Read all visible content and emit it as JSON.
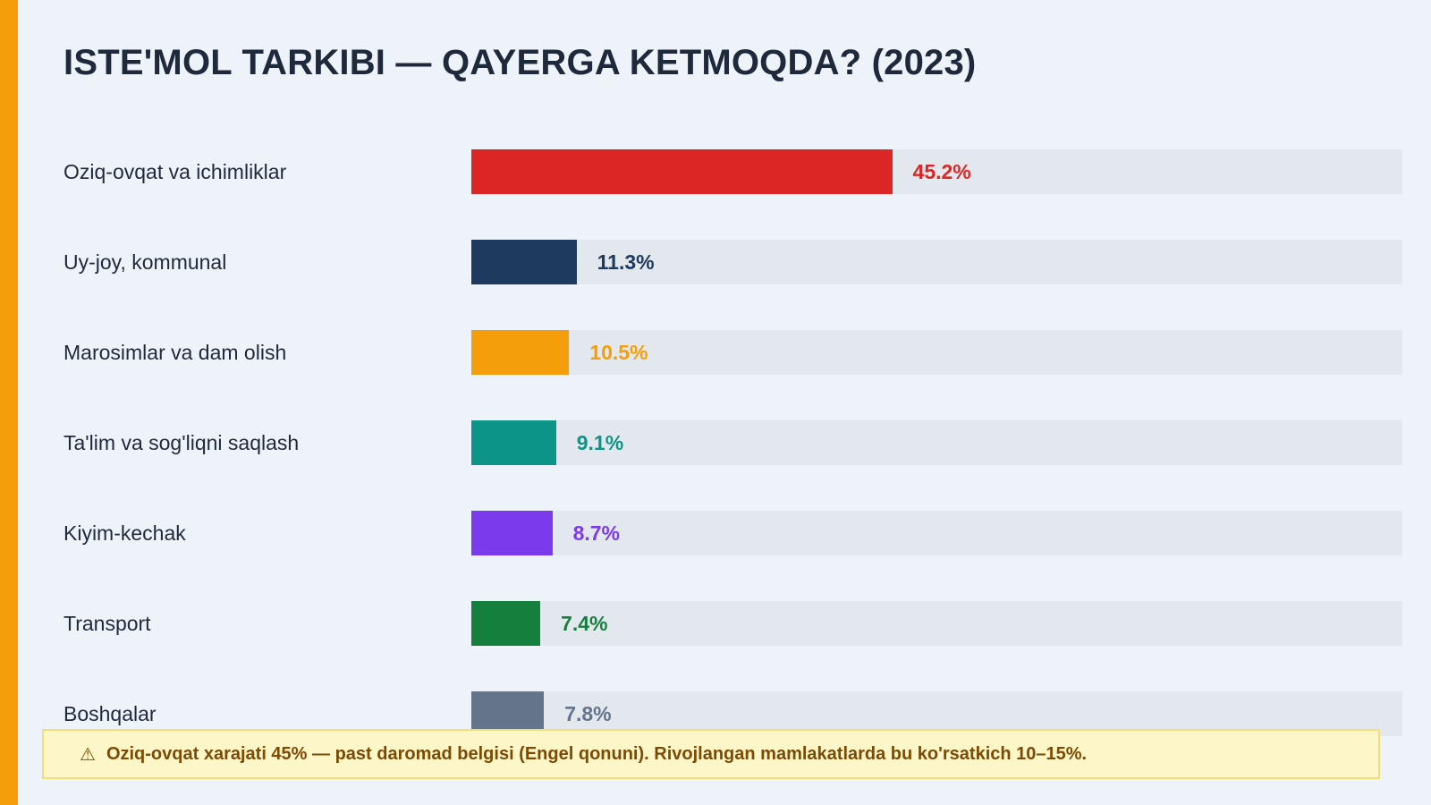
{
  "page": {
    "title": "ISTE'MOL TARKIBI — QAYERGA KETMOQDA? (2023)",
    "note": {
      "icon": "warning-icon",
      "glyph": "⚠",
      "text": "Oziq-ovqat xarajati 45% — past daromad belgisi (Engel qonuni). Rivojlangan mamlakatlarda bu ko'rsatkich 10–15%."
    },
    "colors": {
      "accent": "#f59e0b",
      "track": "#e3e8ef"
    }
  },
  "chart_data": {
    "type": "bar",
    "orientation": "horizontal",
    "title": "ISTE'MOL TARKIBI — QAYERGA KETMOQDA? (2023)",
    "xlim": [
      0,
      100
    ],
    "unit": "%",
    "grid": false,
    "categories": [
      "Oziq-ovqat va ichimliklar",
      "Uy-joy, kommunal",
      "Marosimlar va dam olish",
      "Ta'lim va sog'liqni saqlash",
      "Kiyim-kechak",
      "Transport",
      "Boshqalar"
    ],
    "values": [
      45.2,
      11.3,
      10.5,
      9.1,
      8.7,
      7.4,
      7.8
    ],
    "value_labels": [
      "45.2%",
      "11.3%",
      "10.5%",
      "9.1%",
      "8.7%",
      "7.4%",
      "7.8%"
    ],
    "colors": [
      "#dc2626",
      "#1e3a5f",
      "#f59e0b",
      "#0d9488",
      "#7c3aed",
      "#15803d",
      "#64748b"
    ]
  }
}
